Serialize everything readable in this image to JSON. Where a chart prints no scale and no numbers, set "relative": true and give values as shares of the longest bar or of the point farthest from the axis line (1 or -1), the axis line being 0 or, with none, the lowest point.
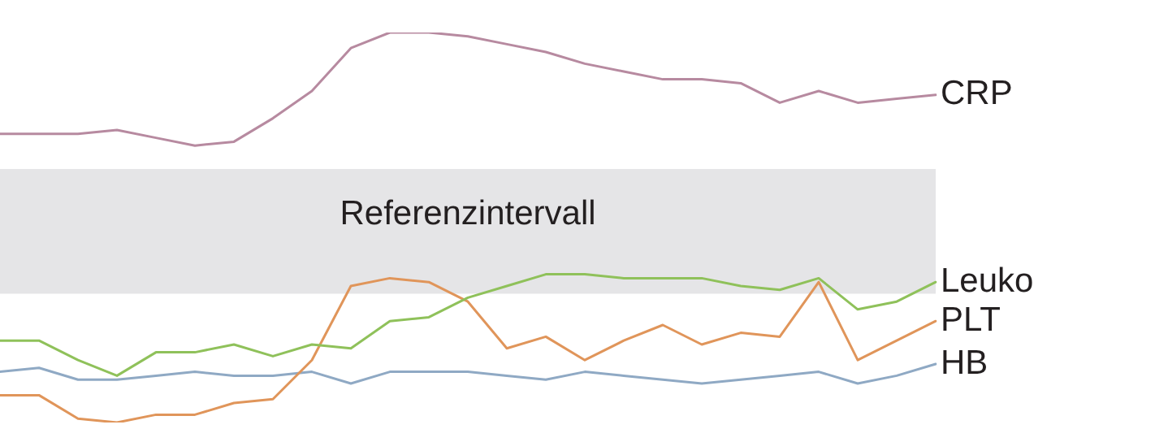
{
  "chart_data": {
    "type": "line",
    "relative": true,
    "legend": false,
    "grid": false,
    "tick_labels": false,
    "marker": "none",
    "line_style": "solid",
    "categories": [
      null,
      null,
      null,
      null,
      null,
      null,
      null,
      null,
      null,
      null,
      null,
      null,
      null,
      null,
      null,
      null,
      null,
      null,
      null,
      null,
      null,
      null,
      null,
      null,
      null
    ],
    "series": [
      {
        "name": "CRP",
        "color": "#b78aa0",
        "values": [
          0.74,
          0.74,
          0.74,
          0.75,
          0.73,
          0.71,
          0.72,
          0.78,
          0.85,
          0.96,
          1,
          1,
          0.99,
          0.97,
          0.95,
          0.92,
          0.9,
          0.88,
          0.88,
          0.87,
          0.82,
          0.85,
          0.82,
          0.83,
          0.84
        ]
      },
      {
        "name": "Leuko",
        "color": "#8fc15a",
        "values": [
          0.21,
          0.21,
          0.16,
          0.12,
          0.18,
          0.18,
          0.2,
          0.17,
          0.2,
          0.19,
          0.26,
          0.27,
          0.32,
          0.35,
          0.38,
          0.38,
          0.37,
          0.37,
          0.37,
          0.35,
          0.34,
          0.37,
          0.29,
          0.31,
          0.36
        ]
      },
      {
        "name": "PLT",
        "color": "#e0955a",
        "values": [
          0.07,
          0.07,
          0.01,
          0,
          0.02,
          0.02,
          0.05,
          0.06,
          0.16,
          0.35,
          0.37,
          0.36,
          0.31,
          0.19,
          0.22,
          0.16,
          0.21,
          0.25,
          0.2,
          0.23,
          0.22,
          0.36,
          0.16,
          0.21,
          0.26
        ]
      },
      {
        "name": "HB",
        "color": "#8fa9c4",
        "values": [
          0.13,
          0.14,
          0.11,
          0.11,
          0.12,
          0.13,
          0.12,
          0.12,
          0.13,
          0.1,
          0.13,
          0.13,
          0.13,
          0.12,
          0.11,
          0.13,
          0.12,
          0.11,
          0.1,
          0.11,
          0.12,
          0.13,
          0.1,
          0.12,
          0.15
        ]
      }
    ],
    "bands": [
      {
        "axis": "y",
        "from": 0.33,
        "to": 0.65,
        "label": "Referenzintervall",
        "color": "#e5e5e7"
      }
    ]
  }
}
